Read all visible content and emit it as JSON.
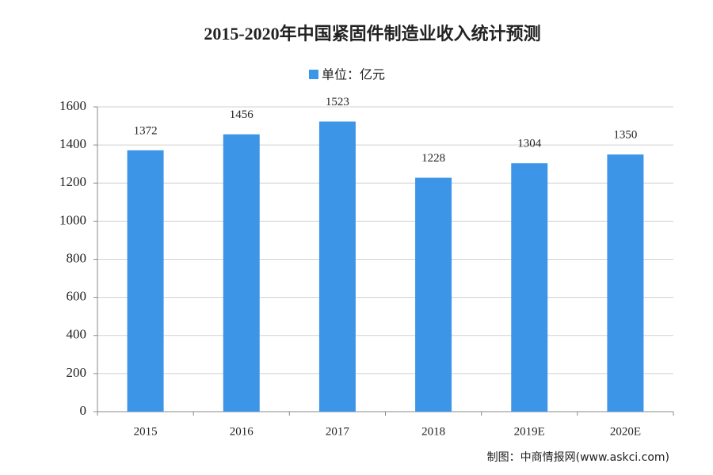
{
  "chart_data": {
    "type": "bar",
    "title": "2015-2020年中国紧固件制造业收入统计预测",
    "categories": [
      "2015",
      "2016",
      "2017",
      "2018",
      "2019E",
      "2020E"
    ],
    "series": [
      {
        "name": "单位：亿元",
        "color": "#3d95e8",
        "values": [
          1372,
          1456,
          1523,
          1228,
          1304,
          1350
        ]
      }
    ],
    "ylim": [
      0,
      1600
    ],
    "yticks": [
      0,
      200,
      400,
      600,
      800,
      1000,
      1200,
      1400,
      1600
    ],
    "grid": true,
    "legend": "top",
    "source": "制图：中商情报网(www.askci.com)"
  }
}
